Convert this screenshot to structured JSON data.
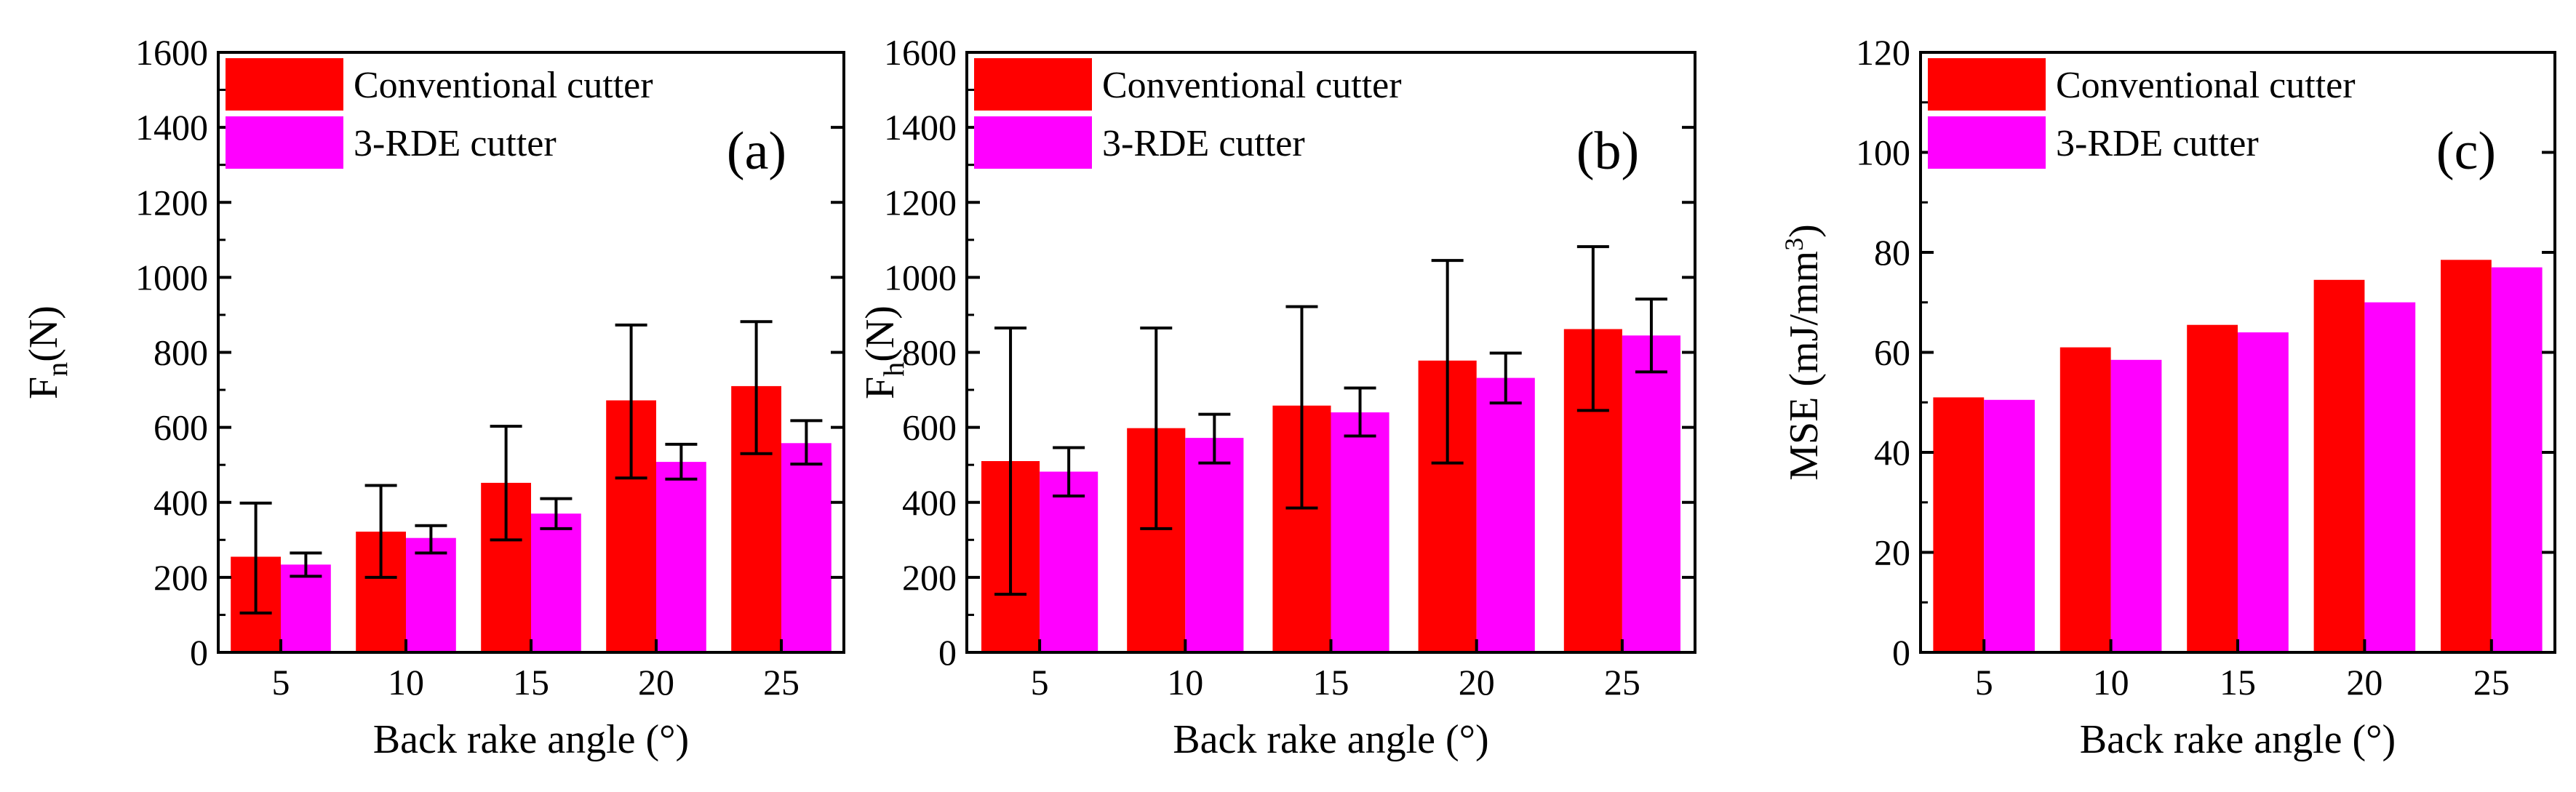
{
  "figure": {
    "legend_labels": [
      "Conventional cutter",
      "3-RDE cutter"
    ],
    "colors": {
      "conventional": "#ff0000",
      "rde": "#ff00ff",
      "axis": "#000000"
    }
  },
  "chart_data": [
    {
      "type": "bar",
      "panel_tag": "(a)",
      "categories": [
        "5",
        "10",
        "15",
        "20",
        "25"
      ],
      "xlabel": "Back rake angle (°)",
      "ylabel": "F",
      "ylabel_sub": "n",
      "ylabel_suffix": "(N)",
      "ylabel_sup": "",
      "ylabel_tail": "",
      "ylim": [
        0,
        1600
      ],
      "yticks": [
        0,
        200,
        400,
        600,
        800,
        1000,
        1200,
        1400,
        1600
      ],
      "legend_position": "top-left",
      "series": [
        {
          "name": "Conventional cutter",
          "values": [
            255,
            322,
            452,
            672,
            710
          ],
          "err_low": [
            105,
            200,
            300,
            465,
            530
          ],
          "err_high": [
            398,
            445,
            603,
            873,
            882
          ]
        },
        {
          "name": "3-RDE cutter",
          "values": [
            234,
            305,
            370,
            508,
            558
          ],
          "err_low": [
            203,
            265,
            330,
            462,
            502
          ],
          "err_high": [
            265,
            338,
            410,
            555,
            618
          ]
        }
      ]
    },
    {
      "type": "bar",
      "panel_tag": "(b)",
      "categories": [
        "5",
        "10",
        "15",
        "20",
        "25"
      ],
      "xlabel": "Back rake angle (°)",
      "ylabel": "F",
      "ylabel_sub": "h",
      "ylabel_suffix": "(N)",
      "ylabel_sup": "",
      "ylabel_tail": "",
      "ylim": [
        0,
        1600
      ],
      "yticks": [
        0,
        200,
        400,
        600,
        800,
        1000,
        1200,
        1400,
        1600
      ],
      "legend_position": "top-left",
      "series": [
        {
          "name": "Conventional cutter",
          "values": [
            510,
            598,
            658,
            778,
            862
          ],
          "err_low": [
            155,
            330,
            385,
            505,
            645
          ],
          "err_high": [
            865,
            865,
            922,
            1045,
            1082
          ]
        },
        {
          "name": "3-RDE cutter",
          "values": [
            482,
            572,
            640,
            732,
            845
          ],
          "err_low": [
            417,
            505,
            577,
            665,
            748
          ],
          "err_high": [
            546,
            635,
            705,
            798,
            942
          ]
        }
      ]
    },
    {
      "type": "bar",
      "panel_tag": "(c)",
      "categories": [
        "5",
        "10",
        "15",
        "20",
        "25"
      ],
      "xlabel": "Back rake angle (°)",
      "ylabel": "MSE (mJ/mm",
      "ylabel_sub": "",
      "ylabel_suffix": "",
      "ylabel_sup": "3",
      "ylabel_tail": ")",
      "ylim": [
        0,
        120
      ],
      "yticks": [
        0,
        20,
        40,
        60,
        80,
        100,
        120
      ],
      "legend_position": "top-left",
      "series": [
        {
          "name": "Conventional cutter",
          "values": [
            51,
            61,
            65.5,
            74.5,
            78.5
          ]
        },
        {
          "name": "3-RDE cutter",
          "values": [
            50.5,
            58.5,
            64,
            70,
            77
          ]
        }
      ]
    }
  ]
}
